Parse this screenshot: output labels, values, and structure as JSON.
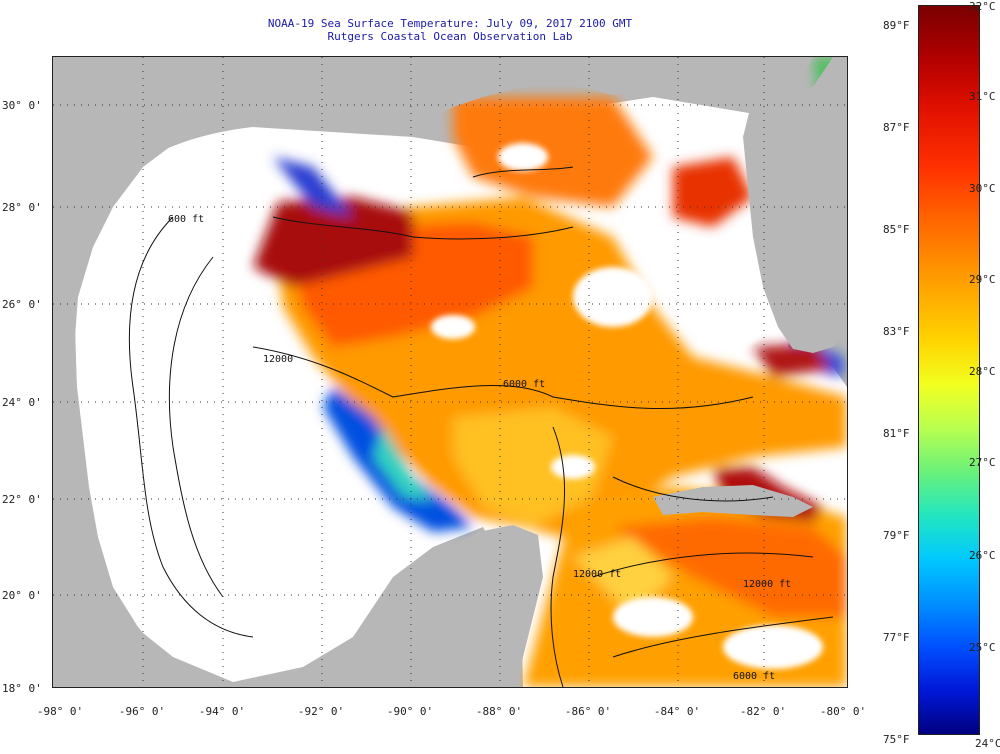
{
  "title": "NOAA-19 Sea Surface Temperature:  July 09, 2017 2100 GMT",
  "subtitle": "Rutgers Coastal Ocean Observation Lab",
  "lat_labels": [
    "30° 0'",
    "28° 0'",
    "26° 0'",
    "24° 0'",
    "22° 0'",
    "20° 0'",
    "18° 0'"
  ],
  "lon_labels": [
    "-98° 0'",
    "-96° 0'",
    "-94° 0'",
    "-92° 0'",
    "-90° 0'",
    "-88° 0'",
    "-86° 0'",
    "-84° 0'",
    "-82° 0'",
    "-80° 0'"
  ],
  "colorbar": {
    "fahrenheit": [
      "89°F",
      "87°F",
      "85°F",
      "83°F",
      "81°F",
      "79°F",
      "77°F",
      "75°F"
    ],
    "celsius": [
      "32°C",
      "31°C",
      "30°C",
      "29°C",
      "28°C",
      "27°C",
      "26°C",
      "25°C",
      "24°C"
    ]
  },
  "contour_labels": [
    "600 ft",
    "12000",
    "6000 ft",
    "12000 ft",
    "12000 ft",
    "6000 ft"
  ],
  "colors": {
    "land": "#b7b7b7",
    "cloud": "#ffffff",
    "title": "#1a1aa8",
    "hot": "#a01010",
    "warm": "#ff5a00",
    "mild": "#ffb000",
    "cool": "#0038d0"
  }
}
